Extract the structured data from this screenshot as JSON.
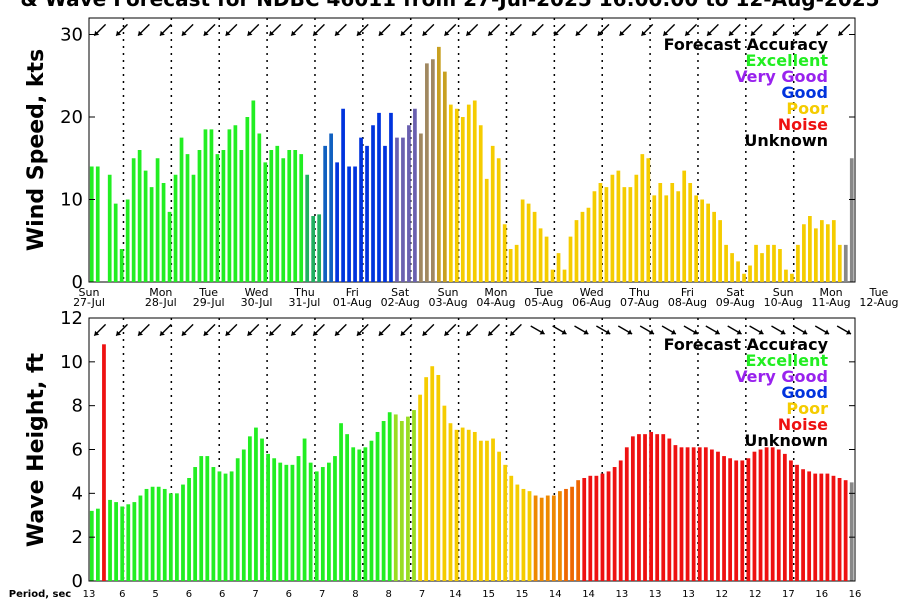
{
  "title": "& Wave Forecast for NDBC 46011 from 27-Jul-2025 16:00:00 to 12-Aug-2025",
  "colors": {
    "Excellent": "#22ee22",
    "Very Good": "#9922ee",
    "Good": "#0033dd",
    "Poor": "#f5cc00",
    "Noise": "#ee1111",
    "Unknown": "#000000",
    "transition1": "#20b060",
    "transition2": "#1060c0",
    "transition3": "#6a60b0",
    "transition4": "#a08860",
    "transition5": "#c8a020",
    "green_yellow": "#99dd22",
    "orange": "#ee8800",
    "dark_orange": "#ee6600"
  },
  "legend": {
    "title": "Forecast Accuracy",
    "items": [
      "Excellent",
      "Very Good",
      "Good",
      "Poor",
      "Noise",
      "Unknown"
    ]
  },
  "days": [
    "Sun",
    "Mon",
    "Tue",
    "Wed",
    "Thu",
    "Fri",
    "Sat",
    "Sun",
    "Mon",
    "Tue",
    "Wed",
    "Thu",
    "Fri",
    "Sat",
    "Sun",
    "Mon",
    "Tue"
  ],
  "dates": [
    "27-Jul",
    "28-Jul",
    "29-Jul",
    "30-Jul",
    "31-Jul",
    "01-Aug",
    "02-Aug",
    "03-Aug",
    "04-Aug",
    "05-Aug",
    "06-Aug",
    "07-Aug",
    "08-Aug",
    "09-Aug",
    "10-Aug",
    "11-Aug",
    "12-Aug"
  ],
  "period_label": "Period, sec",
  "periods": [
    "13",
    "6",
    "5",
    "6",
    "6",
    "7",
    "6",
    "7",
    "8",
    "8",
    "7",
    "14",
    "15",
    "15",
    "14",
    "14",
    "13",
    "13",
    "13",
    "12",
    "12",
    "17",
    "16",
    "16"
  ],
  "chart_data": [
    {
      "type": "bar",
      "title": "& Wave Forecast for NDBC 46011 from 27-Jul-2025 16:00:00 to 12-Aug-2025",
      "ylabel": "Wind Speed, kts",
      "ylim": [
        0,
        32
      ],
      "yticks": [
        0,
        10,
        20,
        30
      ],
      "x_range_days": [
        0,
        16
      ],
      "grid": "dotted vertical lines at midnight",
      "legend_position": "top-right",
      "values": [
        14,
        14,
        0,
        13,
        9.5,
        4,
        10,
        15,
        16,
        13.5,
        11.5,
        15,
        12,
        8.5,
        13,
        17.5,
        15.5,
        13,
        16,
        18.5,
        18.5,
        15.5,
        16,
        18.5,
        19,
        16,
        20,
        22,
        18,
        14.5,
        16,
        16.5,
        15,
        16,
        16,
        15.5,
        13,
        8,
        8.2,
        16.5,
        18,
        14.5,
        21,
        14,
        14,
        17.5,
        16.5,
        19,
        20.5,
        16.5,
        20.5,
        17.5,
        17.5,
        19,
        21,
        18,
        26.5,
        27,
        28.5,
        25.5,
        21.5,
        21,
        20,
        21.5,
        22,
        19,
        12.5,
        16.5,
        15,
        7,
        4,
        4.5,
        10,
        9.5,
        8.5,
        6.5,
        5.5,
        1.5,
        3.5,
        1.5,
        5.5,
        7.5,
        8.5,
        9,
        11,
        12,
        11.5,
        13,
        13.5,
        11.5,
        11.5,
        13,
        15.5,
        15,
        10.5,
        12,
        10.5,
        12,
        11,
        13.5,
        12,
        10.5,
        10,
        9.5,
        8.5,
        7.5,
        4.5,
        3.5,
        2.5,
        1,
        2,
        4.5,
        3.5,
        4.5,
        4.5,
        4,
        1.5,
        1,
        4.5,
        7,
        8,
        6.5,
        7.5,
        7,
        7.5,
        4.5,
        4.5,
        15
      ],
      "categories_by_bar": [
        "Excellent",
        "Excellent",
        "Noise",
        "Excellent",
        "Excellent",
        "Excellent",
        "Excellent",
        "Excellent",
        "Excellent",
        "Excellent",
        "Excellent",
        "Excellent",
        "Excellent",
        "Excellent",
        "Excellent",
        "Excellent",
        "Excellent",
        "Excellent",
        "Excellent",
        "Excellent",
        "Excellent",
        "Excellent",
        "Excellent",
        "Excellent",
        "Excellent",
        "Excellent",
        "Excellent",
        "Excellent",
        "Excellent",
        "Excellent",
        "Excellent",
        "Excellent",
        "Excellent",
        "Excellent",
        "Excellent",
        "Excellent",
        "transition1",
        "transition1",
        "transition1",
        "transition2",
        "transition2",
        "Good",
        "Good",
        "Good",
        "Good",
        "Good",
        "Good",
        "Good",
        "Good",
        "Good",
        "Good",
        "transition3",
        "transition3",
        "transition3",
        "transition3",
        "transition4",
        "transition4",
        "transition4",
        "transition5",
        "transition5",
        "Poor",
        "Poor",
        "Poor",
        "Poor",
        "Poor",
        "Poor",
        "Poor",
        "Poor",
        "Poor",
        "Poor",
        "Poor",
        "Poor",
        "Poor",
        "Poor",
        "Poor",
        "Poor",
        "Poor",
        "Poor",
        "Poor",
        "Poor",
        "Poor",
        "Poor",
        "Poor",
        "Poor",
        "Poor",
        "Poor",
        "Poor",
        "Poor",
        "Poor",
        "Poor",
        "Poor",
        "Poor",
        "Poor",
        "Poor",
        "Poor",
        "Poor",
        "Poor",
        "Poor",
        "Poor",
        "Poor",
        "Poor",
        "Poor",
        "Poor",
        "Poor",
        "Poor",
        "Poor",
        "Poor",
        "Poor",
        "Poor",
        "Poor",
        "Poor",
        "Poor",
        "Poor",
        "Poor",
        "Poor",
        "Poor",
        "Poor",
        "Poor",
        "Poor",
        "Poor",
        "Poor",
        "Poor",
        "Poor",
        "Poor",
        "Poor",
        "Poor"
      ],
      "arrows_direction_deg": [
        135,
        135,
        135,
        135,
        135,
        135,
        135,
        135,
        135,
        135,
        135,
        135,
        135,
        135,
        135,
        135,
        135,
        135,
        135,
        135,
        135,
        135,
        135,
        135,
        135,
        135,
        135,
        135,
        135,
        135,
        135,
        135,
        135,
        135,
        135
      ]
    },
    {
      "type": "bar",
      "ylabel": "Wave Height, ft",
      "ylim": [
        0,
        12
      ],
      "yticks": [
        0,
        2,
        4,
        6,
        8,
        10,
        12
      ],
      "x_range_days": [
        0,
        16
      ],
      "grid": "dotted vertical lines at midnight",
      "legend_position": "top-right",
      "values": [
        3.2,
        3.3,
        10.8,
        3.7,
        3.6,
        3.4,
        3.5,
        3.6,
        3.9,
        4.2,
        4.3,
        4.3,
        4.2,
        4.0,
        4.0,
        4.4,
        4.7,
        5.2,
        5.7,
        5.7,
        5.2,
        5.0,
        4.9,
        5.0,
        5.6,
        6.0,
        6.6,
        7.0,
        6.5,
        5.8,
        5.6,
        5.4,
        5.3,
        5.3,
        5.7,
        6.5,
        5.4,
        5.0,
        5.2,
        5.4,
        5.7,
        7.2,
        6.7,
        6.1,
        6.0,
        6.1,
        6.4,
        6.8,
        7.3,
        7.7,
        7.6,
        7.3,
        7.5,
        7.8,
        8.5,
        9.3,
        9.8,
        9.4,
        8.0,
        7.2,
        6.9,
        7.0,
        6.9,
        6.8,
        6.4,
        6.4,
        6.5,
        5.9,
        5.3,
        4.8,
        4.4,
        4.2,
        4.1,
        3.9,
        3.8,
        3.9,
        3.9,
        4.1,
        4.2,
        4.3,
        4.6,
        4.7,
        4.8,
        4.8,
        4.9,
        5.0,
        5.2,
        5.5,
        6.1,
        6.6,
        6.7,
        6.7,
        6.8,
        6.7,
        6.7,
        6.5,
        6.2,
        6.1,
        6.1,
        6.1,
        6.1,
        6.1,
        6.0,
        5.9,
        5.7,
        5.6,
        5.5,
        5.5,
        5.6,
        5.9,
        6.0,
        6.1,
        6.1,
        6.0,
        5.8,
        5.5,
        5.3,
        5.1,
        5.0,
        4.9,
        4.9,
        4.9,
        4.8,
        4.7,
        4.6,
        4.5
      ],
      "categories_by_bar": [
        "Excellent",
        "Excellent",
        "Noise",
        "Excellent",
        "Excellent",
        "Excellent",
        "Excellent",
        "Excellent",
        "Excellent",
        "Excellent",
        "Excellent",
        "Excellent",
        "Excellent",
        "Excellent",
        "Excellent",
        "Excellent",
        "Excellent",
        "Excellent",
        "Excellent",
        "Excellent",
        "Excellent",
        "Excellent",
        "Excellent",
        "Excellent",
        "Excellent",
        "Excellent",
        "Excellent",
        "Excellent",
        "Excellent",
        "Excellent",
        "Excellent",
        "Excellent",
        "Excellent",
        "Excellent",
        "Excellent",
        "Excellent",
        "Excellent",
        "Excellent",
        "Excellent",
        "Excellent",
        "Excellent",
        "Excellent",
        "Excellent",
        "Excellent",
        "Excellent",
        "Excellent",
        "Excellent",
        "Excellent",
        "Excellent",
        "Excellent",
        "green_yellow",
        "green_yellow",
        "green_yellow",
        "green_yellow",
        "Poor",
        "Poor",
        "Poor",
        "Poor",
        "Poor",
        "Poor",
        "Poor",
        "Poor",
        "Poor",
        "Poor",
        "Poor",
        "Poor",
        "Poor",
        "Poor",
        "Poor",
        "Poor",
        "Poor",
        "Poor",
        "Poor",
        "orange",
        "orange",
        "orange",
        "orange",
        "orange",
        "dark_orange",
        "dark_orange",
        "dark_orange",
        "Noise",
        "Noise",
        "Noise",
        "Noise",
        "Noise",
        "Noise",
        "Noise",
        "Noise",
        "Noise",
        "Noise",
        "Noise",
        "Noise",
        "Noise",
        "Noise",
        "Noise",
        "Noise",
        "Noise",
        "Noise",
        "Noise",
        "Noise",
        "Noise",
        "Noise",
        "Noise",
        "Noise",
        "Noise",
        "Noise",
        "Noise",
        "Noise",
        "Noise",
        "Noise",
        "Noise",
        "Noise",
        "Noise",
        "Noise",
        "Noise",
        "Noise",
        "Noise",
        "Noise",
        "Noise",
        "Noise",
        "Noise",
        "Noise",
        "Noise",
        "Noise"
      ],
      "arrows_direction_deg": [
        135,
        135,
        135,
        135,
        135,
        135,
        135,
        135,
        135,
        135,
        135,
        135,
        135,
        135,
        135,
        135,
        135,
        135,
        135,
        135,
        30,
        30,
        30,
        30,
        30,
        30,
        30,
        30,
        30,
        30,
        30,
        30,
        30,
        30,
        30
      ]
    }
  ]
}
